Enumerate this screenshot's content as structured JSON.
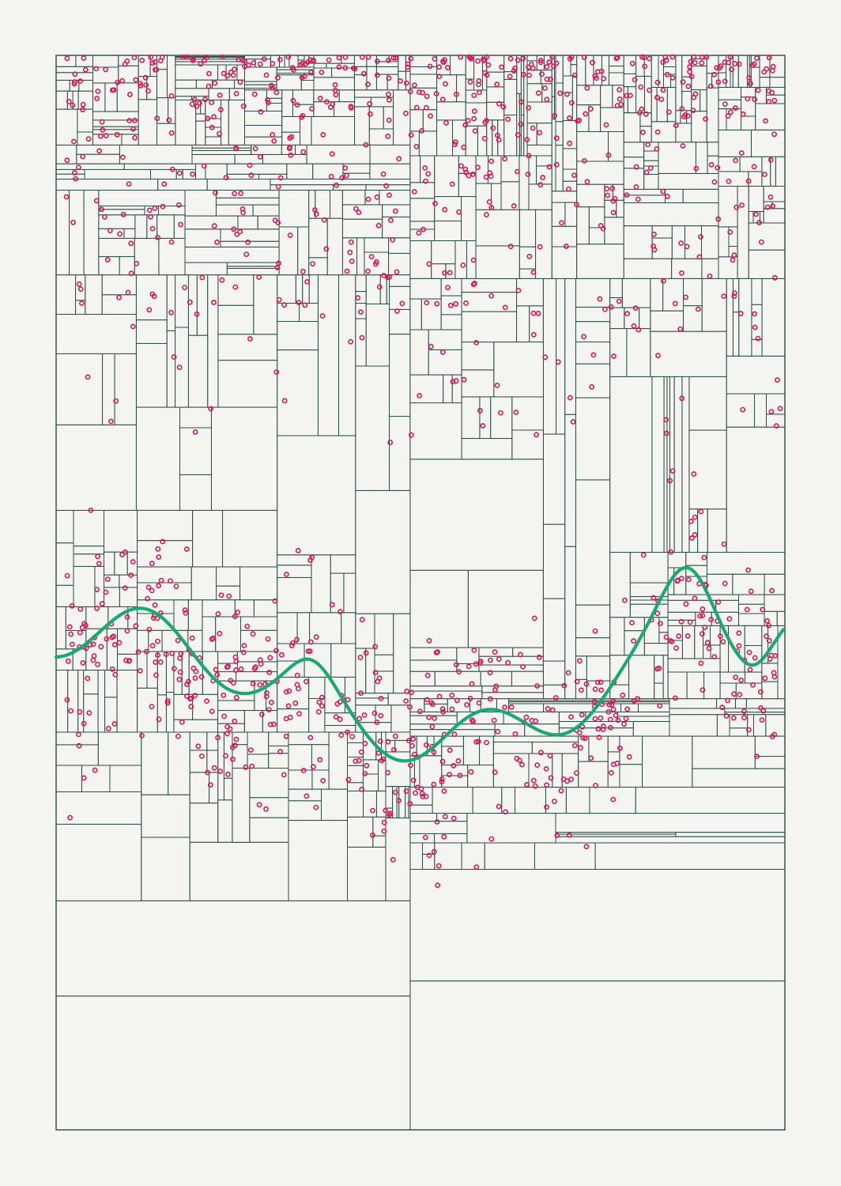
{
  "artwork": {
    "kind": "generative-plot",
    "background_color": "#f4f4f1",
    "grid_line_color": "#2b4a45",
    "point_color": "#d8185a",
    "curve_color": "#1aa874",
    "point_shape": "hollow-circle",
    "curve_shape": "smooth-wave"
  }
}
